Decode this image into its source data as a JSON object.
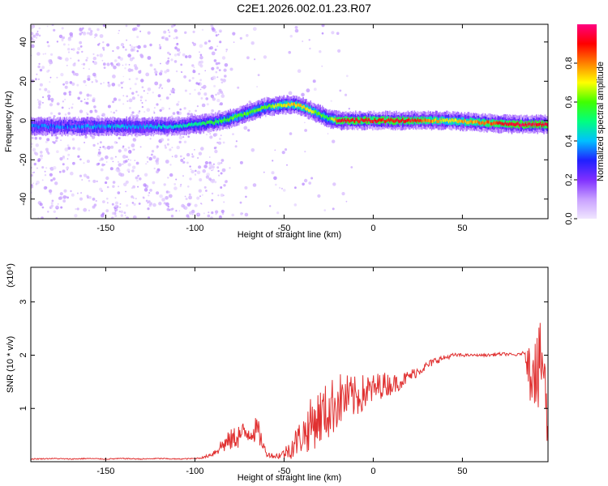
{
  "title": "C2E1.2026.002.01.23.R07",
  "chart_data": [
    {
      "type": "heatmap",
      "title": "C2E1.2026.002.01.23.R07",
      "xlabel": "Height of straight line (km)",
      "ylabel": "Frequency (Hz)",
      "xlim": [
        -192,
        98
      ],
      "ylim": [
        -50,
        49
      ],
      "xticks": [
        -150,
        -100,
        -50,
        0,
        50
      ],
      "yticks": [
        -40,
        -20,
        0,
        20,
        40
      ],
      "colorbar": {
        "label": "Normalized spectral amplitude",
        "range": [
          0,
          1
        ],
        "ticks": [
          0.0,
          0.2,
          0.4,
          0.6,
          0.8
        ],
        "tick_labels": [
          "0.0",
          "0.2",
          "0.4",
          "0.6",
          "0.8"
        ],
        "colors": [
          "#f0e6ff",
          "#c8a0ff",
          "#8030ff",
          "#2020ff",
          "#00c0ff",
          "#00ff80",
          "#40ff00",
          "#ffff00",
          "#ff8000",
          "#ff0000",
          "#ff0080"
        ]
      },
      "ridge": {
        "x": [
          -190,
          -170,
          -150,
          -130,
          -110,
          -100,
          -90,
          -80,
          -70,
          -60,
          -50,
          -45,
          -40,
          -35,
          -30,
          -25,
          -20,
          -10,
          0,
          20,
          40,
          60,
          80,
          95
        ],
        "y": [
          -3,
          -3,
          -3,
          -3,
          -3,
          -2,
          -1,
          1,
          4,
          7,
          8,
          8,
          7,
          5,
          3,
          1,
          0,
          0,
          0,
          0,
          0,
          -1,
          -2,
          -2
        ],
        "amplitude": [
          0.35,
          0.35,
          0.4,
          0.4,
          0.45,
          0.5,
          0.55,
          0.6,
          0.6,
          0.6,
          0.7,
          0.75,
          0.75,
          0.7,
          0.6,
          0.55,
          0.9,
          0.9,
          0.9,
          0.9,
          0.7,
          0.8,
          0.95,
          0.95
        ]
      }
    },
    {
      "type": "line",
      "xlabel": "Height of straight line (km)",
      "ylabel": "SNR (10 * v/v)",
      "y_multiplier": "(x10⁴)",
      "xlim": [
        -192,
        98
      ],
      "ylim": [
        0,
        3.65
      ],
      "xticks": [
        -150,
        -100,
        -50,
        0,
        50
      ],
      "yticks": [
        1,
        2,
        3
      ],
      "series": [
        {
          "name": "SNR",
          "color": "#e03030",
          "x": [
            -192,
            -180,
            -170,
            -160,
            -150,
            -140,
            -130,
            -120,
            -110,
            -100,
            -95,
            -90,
            -85,
            -80,
            -75,
            -70,
            -65,
            -62,
            -60,
            -55,
            -50,
            -45,
            -40,
            -38,
            -35,
            -30,
            -25,
            -20,
            -15,
            -10,
            -5,
            0,
            5,
            10,
            15,
            20,
            25,
            30,
            35,
            40,
            45,
            50,
            55,
            60,
            65,
            70,
            75,
            80,
            85,
            88,
            90,
            92,
            95,
            98
          ],
          "y": [
            0.05,
            0.06,
            0.05,
            0.06,
            0.05,
            0.06,
            0.05,
            0.06,
            0.05,
            0.06,
            0.08,
            0.15,
            0.3,
            0.4,
            0.5,
            0.55,
            0.6,
            0.35,
            0.15,
            0.1,
            0.15,
            0.3,
            0.5,
            0.55,
            0.7,
            0.85,
            0.95,
            1.15,
            1.2,
            1.2,
            1.3,
            1.35,
            1.45,
            1.45,
            1.5,
            1.6,
            1.7,
            1.8,
            1.9,
            1.95,
            2.0,
            2.0,
            2.0,
            2.0,
            2.0,
            2.02,
            2.02,
            2.0,
            2.05,
            1.7,
            2.0,
            1.5,
            2.0,
            0.55
          ],
          "noise": [
            0.01,
            0.01,
            0.01,
            0.01,
            0.01,
            0.01,
            0.01,
            0.01,
            0.01,
            0.01,
            0.02,
            0.05,
            0.15,
            0.2,
            0.25,
            0.2,
            0.25,
            0.15,
            0.05,
            0.05,
            0.1,
            0.25,
            0.35,
            0.4,
            0.5,
            0.55,
            0.55,
            0.55,
            0.45,
            0.4,
            0.35,
            0.3,
            0.25,
            0.2,
            0.15,
            0.12,
            0.1,
            0.08,
            0.07,
            0.05,
            0.04,
            0.03,
            0.02,
            0.02,
            0.03,
            0.03,
            0.03,
            0.02,
            0.03,
            0.6,
            0.8,
            0.9,
            0.8,
            0.5
          ]
        }
      ]
    }
  ]
}
